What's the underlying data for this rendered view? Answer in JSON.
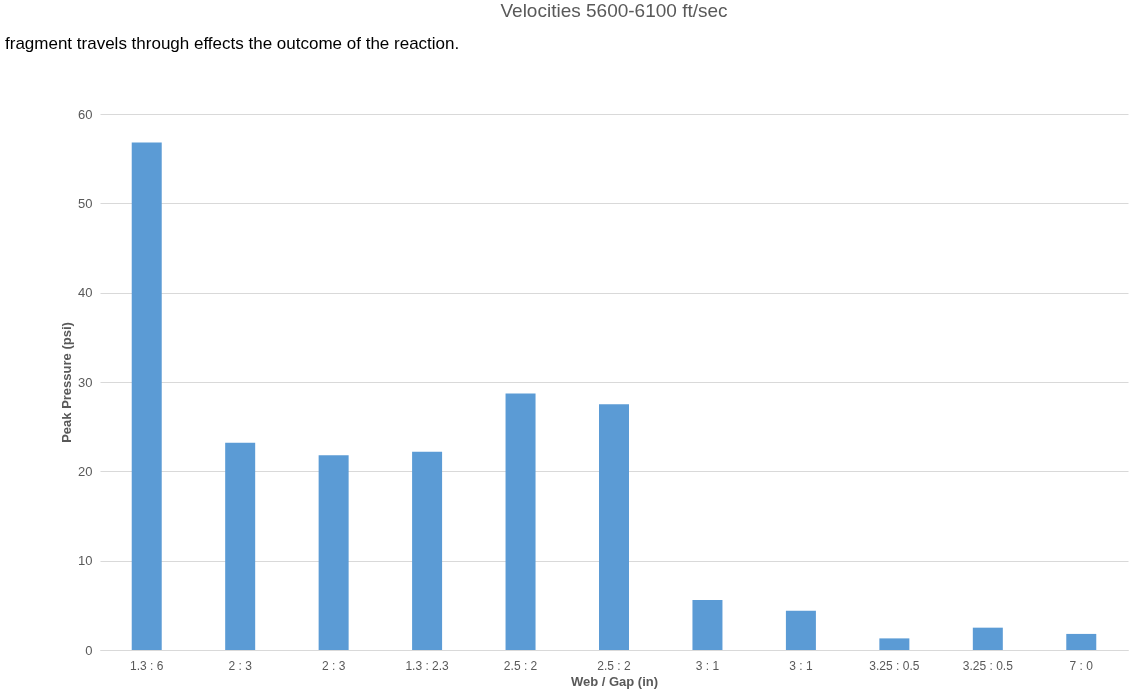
{
  "chart_data": {
    "type": "bar",
    "title": "Velocities 5600-6100 ft/sec",
    "xlabel": "Web / Gap (in)",
    "ylabel": "Peak Pressure  (psi)",
    "categories": [
      "1.3 : 6",
      "2 : 3",
      "2 : 3",
      "1.3 : 2.3",
      "2.5 : 2",
      "2.5 : 2",
      "3 : 1",
      "3 : 1",
      "3.25 : 0.5",
      "3.25 : 0.5",
      "7 : 0"
    ],
    "values": [
      56.8,
      23.2,
      21.8,
      22.2,
      28.7,
      27.5,
      5.6,
      4.4,
      1.3,
      2.5,
      1.8
    ],
    "color": "#5b9bd5",
    "ylim": [
      0,
      60
    ],
    "yticks": [
      0,
      10,
      20,
      30,
      40,
      50,
      60
    ],
    "grid": "y",
    "annotations": [
      "fragment travels through effects the outcome of the reaction."
    ]
  }
}
